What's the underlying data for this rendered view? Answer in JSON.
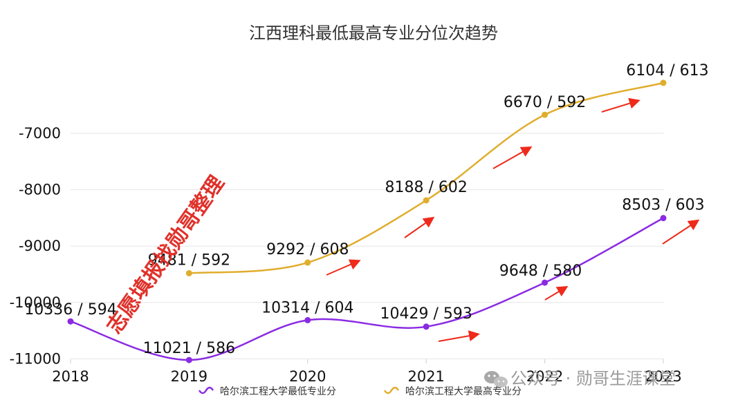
{
  "chart_data": {
    "type": "line",
    "title": "江西理科最低最高专业分位次趋势",
    "x": [
      "2018",
      "2019",
      "2020",
      "2021",
      "2022",
      "2023"
    ],
    "ylim": [
      -11000,
      -6000
    ],
    "yticks": [
      -7000,
      -8000,
      -9000,
      -10000,
      -11000
    ],
    "grid": true,
    "legend_position": "bottom",
    "series": [
      {
        "name": "哈尔滨工程大学最低专业分",
        "color": "#8a2be2",
        "values": [
          -10336,
          -11021,
          -10314,
          -10429,
          -9648,
          -8503
        ],
        "labels": [
          "10336 / 594",
          "11021 / 586",
          "10314 / 604",
          "10429 / 593",
          "9648 / 580",
          "8503 / 603"
        ]
      },
      {
        "name": "哈尔滨工程大学最高专业分",
        "color": "#e0ad2c",
        "values": [
          null,
          -9481,
          -9292,
          -8188,
          -6670,
          -6104
        ],
        "labels": [
          null,
          "9481 / 592",
          "9292 / 608",
          "8188 / 602",
          "6670 / 592",
          "6104 / 613"
        ]
      }
    ],
    "annotations": [
      "志愿填报找勋哥整理"
    ]
  },
  "watermark": "公众号 · 勋哥生涯课堂",
  "arrow_color": "#ee2a1b"
}
